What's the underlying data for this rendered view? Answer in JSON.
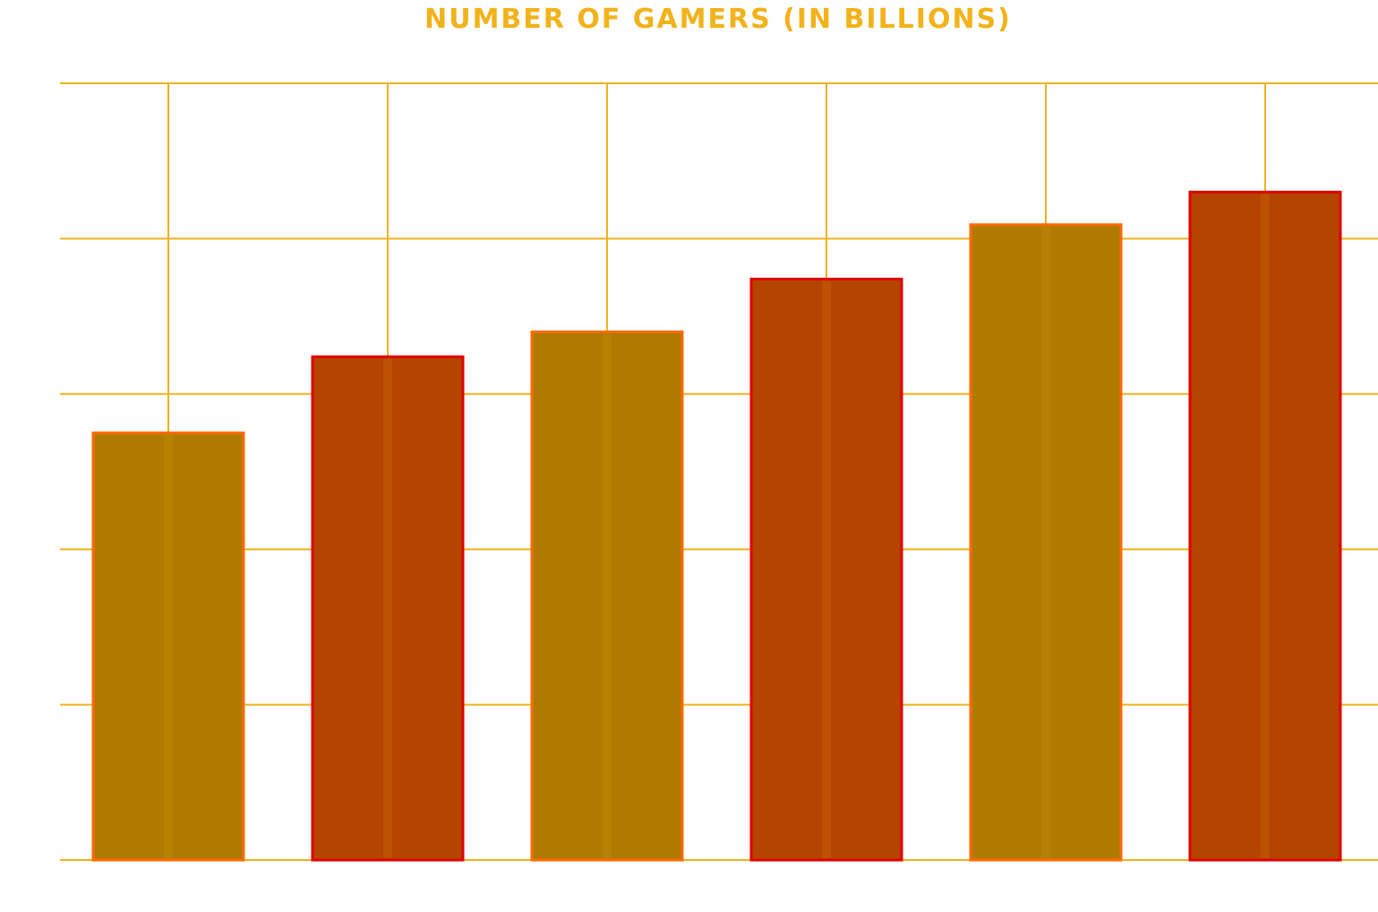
{
  "chart_data": {
    "type": "bar",
    "title": "NUMBER OF GAMERS (IN BILLIONS)",
    "xlabel": "",
    "ylabel": "",
    "categories": [
      "",
      "",
      "",
      "",
      "",
      ""
    ],
    "values": [
      2.75,
      3.24,
      3.4,
      3.74,
      4.09,
      4.3
    ],
    "ylim": [
      0,
      5
    ],
    "grid": true,
    "colors": {
      "title": "#f2b21a",
      "grid": "#f2b21a",
      "bar_fill_a": "#b07a00",
      "bar_stroke_a": "#ff6a00",
      "bar_fill_b": "#b54400",
      "bar_stroke_b": "#e00000"
    }
  }
}
